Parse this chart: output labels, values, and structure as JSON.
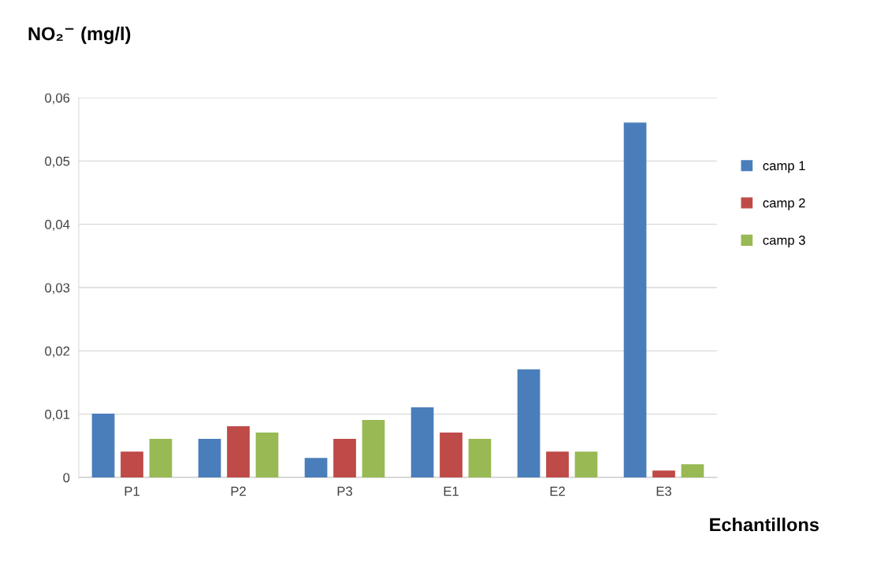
{
  "chart_data": {
    "type": "bar",
    "ylabel": "NO₂$^{−}$ (mg/l)",
    "xlabel": "Echantillons",
    "categories": [
      "P1",
      "P2",
      "P3",
      "E1",
      "E2",
      "E3"
    ],
    "series": [
      {
        "name": "camp 1",
        "color": "#4a7ebb",
        "values": [
          0.01,
          0.006,
          0.003,
          0.011,
          0.017,
          0.056
        ]
      },
      {
        "name": "camp 2",
        "color": "#be4b48",
        "values": [
          0.004,
          0.008,
          0.006,
          0.007,
          0.004,
          0.001
        ]
      },
      {
        "name": "camp 3",
        "color": "#98b954",
        "values": [
          0.006,
          0.007,
          0.009,
          0.006,
          0.004,
          0.002
        ]
      }
    ],
    "ylim": [
      0,
      0.06
    ],
    "yticks": [
      {
        "value": 0,
        "label": "0"
      },
      {
        "value": 0.01,
        "label": "0,01"
      },
      {
        "value": 0.02,
        "label": "0,02"
      },
      {
        "value": 0.03,
        "label": "0,03"
      },
      {
        "value": 0.04,
        "label": "0,04"
      },
      {
        "value": 0.05,
        "label": "0,05"
      },
      {
        "value": 0.06,
        "label": "0,06"
      }
    ],
    "grid": "y",
    "legend": "right"
  }
}
